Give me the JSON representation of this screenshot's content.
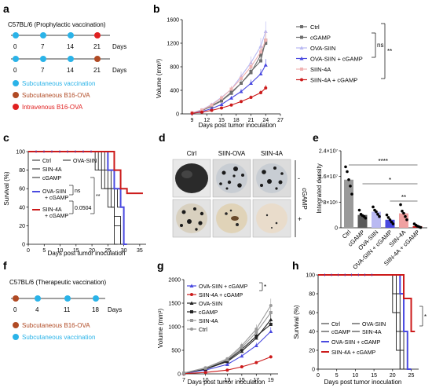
{
  "panels": {
    "a": {
      "letter": "a",
      "title": "C57BL/6 (Prophylactic vaccination)",
      "timeline": [
        "0",
        "7",
        "14",
        "21"
      ],
      "days_label": "Days",
      "legend": [
        {
          "text": "Subcutaneous  vaccination",
          "color": "#2ab3e8"
        },
        {
          "text": "Subcutaneous  B16-OVA",
          "color": "#b04a24"
        },
        {
          "text": "Intravenous  B16-OVA",
          "color": "#e02020"
        }
      ]
    },
    "b": {
      "letter": "b",
      "ylabel": "Volume (mm³)",
      "xlabel": "Days post tumor inoculation",
      "yticks": [
        "0",
        "400",
        "800",
        "1200",
        "1600"
      ],
      "xticks": [
        "9",
        "12",
        "15",
        "18",
        "21",
        "24",
        "27"
      ],
      "legend": [
        "Ctrl",
        "cGAMP",
        "OVA-SIIN",
        "OVA-SIIN + cGAMP",
        "SIIN-4A",
        "SIIN-4A + cGAMP"
      ],
      "sig": [
        "ns",
        "**"
      ]
    },
    "c": {
      "letter": "c",
      "ylabel": "Survival (%)",
      "xlabel": "Days post tumor inoculation",
      "yticks": [
        "0",
        "20",
        "40",
        "60",
        "80",
        "100"
      ],
      "xticks": [
        "0",
        "5",
        "10",
        "15",
        "20",
        "25",
        "30",
        "35"
      ],
      "legend": [
        "Ctrl",
        "OVA-SIIN",
        "SIIN-4A",
        "cGAMP",
        "OVA-SIIN + cGAMP",
        "SIIN-4A + cGAMP"
      ],
      "sig": [
        "ns",
        "0.0504",
        "**"
      ]
    },
    "d": {
      "letter": "d",
      "columns": [
        "Ctrl",
        "SIIN-OVA",
        "SIIN-4A"
      ],
      "side_label": "cGAMP",
      "rows": [
        "-",
        "+"
      ]
    },
    "e": {
      "letter": "e",
      "ylabel": "Integrated density",
      "yticks": [
        "0",
        "8×10⁶",
        "1.6×10⁷",
        "2.4×10⁷"
      ],
      "categories": [
        "Ctrl",
        "cGAMP",
        "OVA-SIIN",
        "OVA-SIIN + cGAMP",
        "SIIN-4A",
        "SIIN-4A + cGAMP"
      ],
      "sig": [
        "****",
        "*",
        "**"
      ]
    },
    "f": {
      "letter": "f",
      "title": "C57BL/6 (Therapeutic vaccination)",
      "timeline": [
        "0",
        "4",
        "11",
        "18"
      ],
      "days_label": "Days",
      "legend": [
        {
          "text": "Subcutaneous  B16-OVA",
          "color": "#b04a24"
        },
        {
          "text": "Subcutaneous  vaccination",
          "color": "#2ab3e8"
        }
      ]
    },
    "g": {
      "letter": "g",
      "ylabel": "Volume (mm³)",
      "xlabel": "Days post tumor inoculation",
      "yticks": [
        "0",
        "500",
        "1000",
        "1500",
        "2000"
      ],
      "xticks": [
        "7",
        "10",
        "13",
        "15",
        "17",
        "19"
      ],
      "legend": [
        "OVA-SIIN + cGAMP",
        "SIIN-4A + cGAMP",
        "OVA-SIIN",
        "cGAMP",
        "SIIN-4A",
        "Ctrl"
      ],
      "sig": [
        "*"
      ]
    },
    "h": {
      "letter": "h",
      "ylabel": "Survival (%)",
      "xlabel": "Days post tumor inoculation",
      "yticks": [
        "0",
        "20",
        "40",
        "60",
        "80",
        "100"
      ],
      "xticks": [
        "0",
        "5",
        "10",
        "15",
        "20",
        "25"
      ],
      "legend": [
        "Ctrl",
        "OVA-SIIN",
        "cGAMP",
        "SIIN-4A",
        "OVA-SIIN + cGAMP",
        "SIIN-4A + cGAMP"
      ],
      "sig": [
        "*"
      ]
    }
  },
  "chart_data": [
    {
      "panel": "b",
      "type": "line",
      "xlabel": "Days post tumor inoculation",
      "ylabel": "Volume (mm³)",
      "xlim": [
        7,
        27
      ],
      "ylim": [
        0,
        1600
      ],
      "x": [
        9,
        11,
        13,
        15,
        17,
        19,
        21,
        23,
        24
      ],
      "series": [
        {
          "name": "Ctrl",
          "color": "#6e6e6e",
          "values": [
            20,
            60,
            140,
            230,
            370,
            520,
            700,
            1000,
            1200
          ]
        },
        {
          "name": "cGAMP",
          "color": "#6e6e6e",
          "values": [
            20,
            55,
            130,
            220,
            350,
            520,
            720,
            900,
            1250
          ]
        },
        {
          "name": "OVA-SIIN",
          "color": "#b9b9f2",
          "values": [
            20,
            70,
            160,
            280,
            420,
            640,
            870,
            1150,
            1400
          ]
        },
        {
          "name": "OVA-SIIN + cGAMP",
          "color": "#4a4ae0",
          "values": [
            15,
            40,
            90,
            160,
            270,
            380,
            520,
            680,
            830
          ]
        },
        {
          "name": "SIIN-4A",
          "color": "#f0b3b3",
          "values": [
            20,
            65,
            150,
            270,
            420,
            600,
            800,
            1050,
            1250
          ]
        },
        {
          "name": "SIIN-4A + cGAMP",
          "color": "#cc1a1a",
          "values": [
            10,
            30,
            60,
            100,
            150,
            210,
            280,
            360,
            440
          ]
        }
      ]
    },
    {
      "panel": "c",
      "type": "line",
      "xlabel": "Days post tumor inoculation",
      "ylabel": "Survival (%)",
      "xlim": [
        0,
        37
      ],
      "ylim": [
        0,
        100
      ],
      "series": [
        {
          "name": "Ctrl",
          "color": "#222222",
          "steps": [
            [
              0,
              100
            ],
            [
              22,
              100
            ],
            [
              22,
              80
            ],
            [
              24,
              80
            ],
            [
              24,
              60
            ],
            [
              26,
              60
            ],
            [
              26,
              40
            ],
            [
              27,
              40
            ],
            [
              27,
              20
            ],
            [
              29,
              20
            ],
            [
              29,
              0
            ],
            [
              30,
              0
            ]
          ]
        },
        {
          "name": "OVA-SIIN",
          "color": "#222222",
          "steps": [
            [
              0,
              100
            ],
            [
              24,
              100
            ],
            [
              24,
              80
            ],
            [
              26,
              80
            ],
            [
              26,
              60
            ],
            [
              28,
              60
            ],
            [
              28,
              40
            ],
            [
              30,
              40
            ],
            [
              30,
              0
            ],
            [
              31,
              0
            ]
          ]
        },
        {
          "name": "SIIN-4A",
          "color": "#222222",
          "steps": [
            [
              0,
              100
            ],
            [
              23,
              100
            ],
            [
              23,
              80
            ],
            [
              25,
              80
            ],
            [
              25,
              60
            ],
            [
              27,
              60
            ],
            [
              27,
              30
            ],
            [
              29,
              30
            ],
            [
              29,
              0
            ],
            [
              30,
              0
            ]
          ]
        },
        {
          "name": "cGAMP",
          "color": "#222222",
          "steps": [
            [
              0,
              100
            ],
            [
              21,
              100
            ],
            [
              21,
              80
            ],
            [
              23,
              80
            ],
            [
              23,
              60
            ],
            [
              25,
              60
            ],
            [
              25,
              40
            ],
            [
              27,
              40
            ],
            [
              27,
              0
            ],
            [
              28,
              0
            ]
          ]
        },
        {
          "name": "OVA-SIIN + cGAMP",
          "color": "#4a4ae0",
          "steps": [
            [
              0,
              100
            ],
            [
              25,
              100
            ],
            [
              25,
              80
            ],
            [
              27,
              80
            ],
            [
              27,
              60
            ],
            [
              29,
              60
            ],
            [
              29,
              40
            ],
            [
              30,
              40
            ],
            [
              30,
              0
            ],
            [
              31,
              0
            ]
          ]
        },
        {
          "name": "SIIN-4A + cGAMP",
          "color": "#cc1a1a",
          "steps": [
            [
              0,
              100
            ],
            [
              27,
              100
            ],
            [
              27,
              80
            ],
            [
              29,
              80
            ],
            [
              29,
              60
            ],
            [
              31,
              60
            ],
            [
              31,
              55
            ],
            [
              36,
              55
            ]
          ]
        }
      ]
    },
    {
      "panel": "e",
      "type": "bar",
      "ylabel": "Integrated density",
      "ylim": [
        0,
        24000000
      ],
      "categories": [
        "Ctrl",
        "cGAMP",
        "OVA-SIIN",
        "OVA-SIIN + cGAMP",
        "SIIN-4A",
        "SIIN-4A + cGAMP"
      ],
      "colors": [
        "#9a9a9a",
        "#5a5a5a",
        "#b9b9f2",
        "#4a4ae0",
        "#f0a0a0",
        "#cc1a1a"
      ],
      "values": [
        15000000,
        4000000,
        5000000,
        2500000,
        4500000,
        500000
      ],
      "points": [
        [
          19000000,
          17500000,
          15000000,
          13000000,
          10500000
        ],
        [
          5500000,
          4200000,
          3800000,
          3500000,
          3000000
        ],
        [
          6500000,
          5500000,
          5000000,
          4200000,
          3500000
        ],
        [
          4000000,
          3200000,
          2500000,
          1800000,
          1200000
        ],
        [
          7200000,
          5200000,
          4500000,
          3500000,
          2500000
        ],
        [
          1200000,
          800000,
          500000,
          300000,
          100000
        ]
      ]
    },
    {
      "panel": "g",
      "type": "line",
      "xlabel": "Days post tumor inoculation",
      "ylabel": "Volume (mm³)",
      "xlim": [
        7,
        20
      ],
      "ylim": [
        0,
        2000
      ],
      "x": [
        7,
        10,
        13,
        15,
        17,
        19
      ],
      "series": [
        {
          "name": "OVA-SIIN + cGAMP",
          "color": "#4a4ae0",
          "values": [
            10,
            80,
            200,
            380,
            600,
            900
          ]
        },
        {
          "name": "SIIN-4A + cGAMP",
          "color": "#cc1a1a",
          "values": [
            5,
            30,
            80,
            150,
            240,
            360
          ]
        },
        {
          "name": "OVA-SIIN",
          "color": "#222222",
          "values": [
            15,
            100,
            260,
            480,
            760,
            1150
          ]
        },
        {
          "name": "cGAMP",
          "color": "#222222",
          "values": [
            15,
            110,
            280,
            520,
            800,
            1050
          ]
        },
        {
          "name": "SIIN-4A",
          "color": "#9a9a9a",
          "values": [
            15,
            120,
            300,
            560,
            880,
            1300
          ]
        },
        {
          "name": "Ctrl",
          "color": "#9a9a9a",
          "values": [
            20,
            130,
            320,
            600,
            950,
            1450
          ]
        }
      ]
    },
    {
      "panel": "h",
      "type": "line",
      "xlabel": "Days post tumor inoculation",
      "ylabel": "Survival (%)",
      "xlim": [
        0,
        27
      ],
      "ylim": [
        0,
        100
      ],
      "series": [
        {
          "name": "Ctrl",
          "color": "#222222",
          "steps": [
            [
              0,
              100
            ],
            [
              20,
              100
            ],
            [
              20,
              60
            ],
            [
              21,
              60
            ],
            [
              21,
              20
            ],
            [
              22,
              20
            ],
            [
              22,
              0
            ],
            [
              23,
              0
            ]
          ]
        },
        {
          "name": "OVA-SIIN",
          "color": "#222222",
          "steps": [
            [
              0,
              100
            ],
            [
              21,
              100
            ],
            [
              21,
              80
            ],
            [
              22,
              80
            ],
            [
              22,
              40
            ],
            [
              23,
              40
            ],
            [
              23,
              0
            ],
            [
              24,
              0
            ]
          ]
        },
        {
          "name": "cGAMP",
          "color": "#222222",
          "steps": [
            [
              0,
              100
            ],
            [
              20,
              100
            ],
            [
              20,
              80
            ],
            [
              21,
              80
            ],
            [
              21,
              40
            ],
            [
              22,
              40
            ],
            [
              22,
              0
            ],
            [
              23,
              0
            ]
          ]
        },
        {
          "name": "SIIN-4A",
          "color": "#222222",
          "steps": [
            [
              0,
              100
            ],
            [
              21,
              100
            ],
            [
              21,
              60
            ],
            [
              22,
              60
            ],
            [
              22,
              20
            ],
            [
              23,
              20
            ],
            [
              23,
              0
            ],
            [
              24,
              0
            ]
          ]
        },
        {
          "name": "OVA-SIIN + cGAMP",
          "color": "#4a4ae0",
          "steps": [
            [
              0,
              100
            ],
            [
              22,
              100
            ],
            [
              22,
              80
            ],
            [
              23,
              80
            ],
            [
              23,
              40
            ],
            [
              24,
              40
            ],
            [
              24,
              0
            ],
            [
              25,
              0
            ]
          ]
        },
        {
          "name": "SIIN-4A + cGAMP",
          "color": "#cc1a1a",
          "steps": [
            [
              0,
              100
            ],
            [
              23,
              100
            ],
            [
              23,
              75
            ],
            [
              25,
              75
            ],
            [
              25,
              40
            ],
            [
              26,
              40
            ]
          ]
        }
      ]
    }
  ]
}
